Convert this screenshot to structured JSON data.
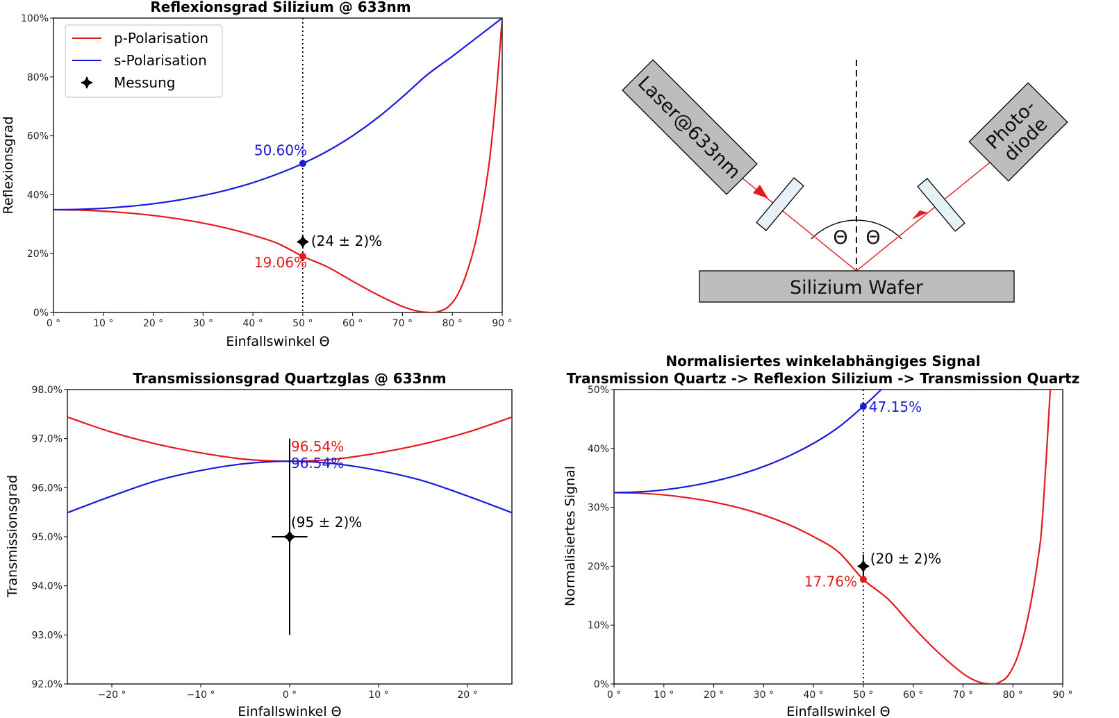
{
  "colors": {
    "p": "#e41a1c",
    "s": "#1a1adc",
    "measure": "#000000",
    "box_fill": "#bdbdbd",
    "filter_fill": "#e7f1f8"
  },
  "chart_data": [
    {
      "type": "line",
      "title": "Reflexionsgrad Silizium @ 633nm",
      "xlabel": "Einfallswinkel Θ",
      "ylabel": "Reflexionsgrad",
      "xlim": [
        0,
        90
      ],
      "ylim": [
        0,
        1
      ],
      "xticks": [
        0,
        10,
        20,
        30,
        40,
        50,
        60,
        70,
        80,
        90
      ],
      "xtick_labels": [
        "0 °",
        "10 °",
        "20 °",
        "30 °",
        "40 °",
        "50 °",
        "60 °",
        "70 °",
        "80 °",
        "90 °"
      ],
      "yticks": [
        0,
        0.2,
        0.4,
        0.6,
        0.8,
        1.0
      ],
      "ytick_labels": [
        "0%",
        "20%",
        "40%",
        "60%",
        "80%",
        "100%"
      ],
      "vline_x": 50,
      "legend_position": "upper-left",
      "series": [
        {
          "name": "p-Polarisation",
          "color": "p",
          "x": [
            0,
            5,
            10,
            15,
            20,
            25,
            30,
            35,
            40,
            45,
            50,
            55,
            60,
            65,
            70,
            73,
            75,
            76,
            77,
            79,
            81,
            83,
            85,
            87,
            88,
            89,
            90
          ],
          "y": [
            0.349,
            0.3478,
            0.3441,
            0.338,
            0.3294,
            0.318,
            0.3035,
            0.2852,
            0.2624,
            0.2342,
            0.1906,
            0.1543,
            0.1062,
            0.0602,
            0.0204,
            0.0045,
            0.0005,
            0.0,
            0.002,
            0.0165,
            0.0585,
            0.14,
            0.265,
            0.46,
            0.6,
            0.78,
            1.0
          ]
        },
        {
          "name": "s-Polarisation",
          "color": "s",
          "x": [
            0,
            5,
            10,
            15,
            20,
            25,
            30,
            35,
            40,
            45,
            50,
            55,
            60,
            65,
            70,
            75,
            80,
            85,
            90
          ],
          "y": [
            0.349,
            0.3502,
            0.3539,
            0.3602,
            0.3693,
            0.3815,
            0.3972,
            0.4168,
            0.441,
            0.4708,
            0.506,
            0.5486,
            0.6001,
            0.6612,
            0.7322,
            0.8077,
            0.87,
            0.935,
            1.0
          ]
        }
      ],
      "points": [
        {
          "x": 50,
          "y": 0.506,
          "color": "s",
          "label": "50.60%"
        },
        {
          "x": 50,
          "y": 0.1906,
          "color": "p",
          "label": "19.06%"
        }
      ],
      "measurement": {
        "name": "Messung",
        "x": 50,
        "y": 0.24,
        "xerr": 1,
        "yerr": 0.02,
        "label": "(24 ± 2)%"
      }
    },
    {
      "type": "line",
      "title": "Transmissionsgrad Quartzglas @ 633nm",
      "xlabel": "Einfallswinkel Θ",
      "ylabel": "Transmissionsgrad",
      "xlim": [
        -25,
        25
      ],
      "ylim": [
        0.92,
        0.98
      ],
      "xticks": [
        -20,
        -10,
        0,
        10,
        20
      ],
      "xtick_labels": [
        "−20 °",
        "−10 °",
        "0 °",
        "10 °",
        "20 °"
      ],
      "yticks": [
        0.92,
        0.93,
        0.94,
        0.95,
        0.96,
        0.97,
        0.98
      ],
      "ytick_labels": [
        "92.0%",
        "93.0%",
        "94.0%",
        "95.0%",
        "96.0%",
        "97.0%",
        "98.0%"
      ],
      "series": [
        {
          "name": "p-Polarisation",
          "color": "p",
          "x": [
            -25,
            -20,
            -15,
            -10,
            -5,
            0,
            5,
            10,
            15,
            20,
            25
          ],
          "y": [
            0.9744,
            0.9713,
            0.9689,
            0.9671,
            0.9658,
            0.9654,
            0.9658,
            0.9671,
            0.9689,
            0.9713,
            0.9744
          ]
        },
        {
          "name": "s-Polarisation",
          "color": "s",
          "x": [
            -25,
            -20,
            -15,
            -10,
            -5,
            0,
            5,
            10,
            15,
            20,
            25
          ],
          "y": [
            0.9549,
            0.9583,
            0.9614,
            0.9635,
            0.9649,
            0.9654,
            0.9649,
            0.9635,
            0.9614,
            0.9583,
            0.9549
          ]
        }
      ],
      "points": [
        {
          "x": 0,
          "y": 0.9654,
          "color": "p",
          "label": "96.54%",
          "dy": -18
        },
        {
          "x": 0,
          "y": 0.9654,
          "color": "s",
          "label": "96.54%",
          "dy": 8
        }
      ],
      "measurement": {
        "name": "Messung",
        "x": 0,
        "y": 0.95,
        "xerr": 2,
        "yerr": 0.02,
        "label": "(95 ± 2)%"
      }
    },
    {
      "type": "line",
      "title": "Normalisiertes winkelabhängiges Signal",
      "subtitle": "Transmission Quartz -> Reflexion Silizium -> Transmission Quartz",
      "xlabel": "Einfallswinkel Θ",
      "ylabel": "Normalisiertes Signal",
      "xlim": [
        0,
        90
      ],
      "ylim": [
        0,
        0.5
      ],
      "xticks": [
        0,
        10,
        20,
        30,
        40,
        50,
        60,
        70,
        80,
        90
      ],
      "xtick_labels": [
        "0 °",
        "10 °",
        "20 °",
        "30 °",
        "40 °",
        "50 °",
        "60 °",
        "70 °",
        "80 °",
        "90 °"
      ],
      "yticks": [
        0,
        0.1,
        0.2,
        0.3,
        0.4,
        0.5
      ],
      "ytick_labels": [
        "0%",
        "10%",
        "20%",
        "30%",
        "40%",
        "50%"
      ],
      "vline_x": 50,
      "series": [
        {
          "name": "p-Polarisation",
          "color": "p",
          "x": [
            0,
            5,
            10,
            15,
            20,
            25,
            30,
            35,
            40,
            45,
            50,
            55,
            60,
            65,
            70,
            73,
            75,
            76,
            77,
            79,
            81,
            83,
            85,
            86,
            87.5
          ],
          "y": [
            0.325,
            0.3241,
            0.3211,
            0.316,
            0.3089,
            0.2993,
            0.2868,
            0.2707,
            0.2502,
            0.2242,
            0.1776,
            0.1439,
            0.0967,
            0.0538,
            0.0177,
            0.0038,
            0.0004,
            0.0,
            0.0017,
            0.0138,
            0.048,
            0.112,
            0.21,
            0.29,
            0.5
          ]
        },
        {
          "name": "s-Polarisation",
          "color": "s",
          "x": [
            0,
            5,
            10,
            15,
            20,
            25,
            30,
            35,
            40,
            45,
            50,
            53.6
          ],
          "y": [
            0.325,
            0.3262,
            0.3297,
            0.3357,
            0.3442,
            0.3552,
            0.3693,
            0.387,
            0.4086,
            0.4358,
            0.4715,
            0.5
          ]
        }
      ],
      "points": [
        {
          "x": 50,
          "y": 0.4715,
          "color": "s",
          "label": "47.15%"
        },
        {
          "x": 50,
          "y": 0.1776,
          "color": "p",
          "label": "17.76%"
        }
      ],
      "measurement": {
        "name": "Messung",
        "x": 50,
        "y": 0.2,
        "xerr": 1,
        "yerr": 0.02,
        "label": "(20 ± 2)%"
      }
    }
  ],
  "diagram": {
    "laser_label": "Laser@633nm",
    "photodiode_label_1": "Photo-",
    "photodiode_label_2": "diode",
    "wafer_label": "Silizium Wafer",
    "angle_left": "Θ",
    "angle_right": "Θ"
  }
}
